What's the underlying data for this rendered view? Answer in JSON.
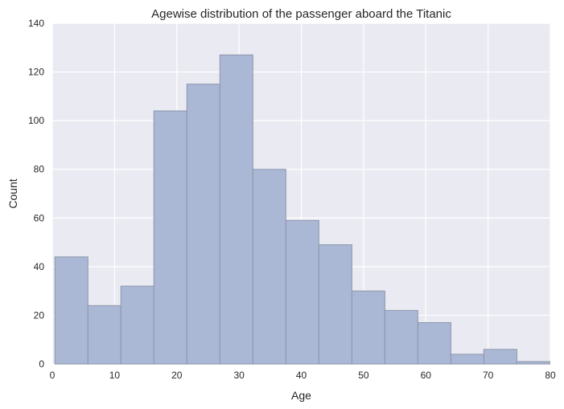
{
  "colors": {
    "plot_background": "#eaeaf2",
    "grid": "#ffffff",
    "bar_fill": "#aab8d6",
    "bar_edge": "#8c96aa",
    "text": "#262626"
  },
  "chart_data": {
    "type": "bar",
    "histogram": true,
    "title": "Agewise distribution of the passenger aboard the Titanic",
    "xlabel": "Age",
    "ylabel": "Count",
    "xlim": [
      0,
      80
    ],
    "ylim": [
      0,
      140
    ],
    "xticks": [
      0,
      10,
      20,
      30,
      40,
      50,
      60,
      70,
      80
    ],
    "yticks": [
      0,
      20,
      40,
      60,
      80,
      100,
      120,
      140
    ],
    "grid": true,
    "bin_edges": [
      0.42,
      5.72,
      11.02,
      16.32,
      21.62,
      26.92,
      32.22,
      37.52,
      42.82,
      48.12,
      53.42,
      58.72,
      64.02,
      69.32,
      74.62,
      79.92
    ],
    "values": [
      44,
      24,
      32,
      104,
      115,
      127,
      80,
      59,
      49,
      30,
      22,
      17,
      4,
      6,
      1
    ]
  }
}
